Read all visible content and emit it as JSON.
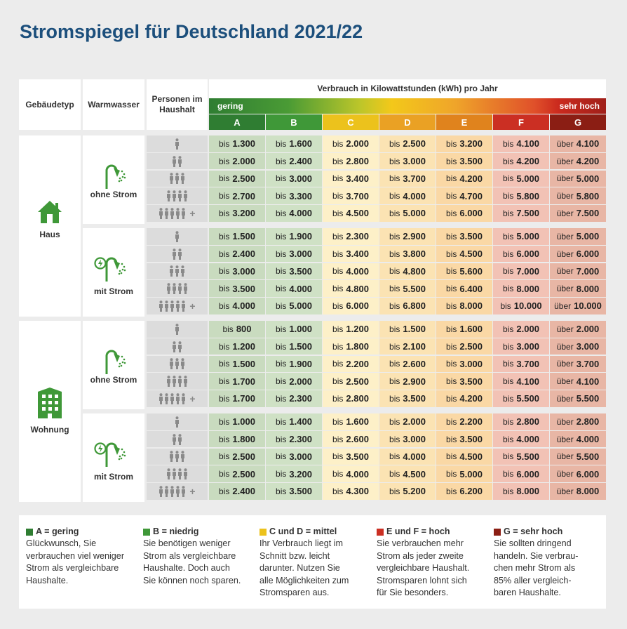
{
  "title": "Stromspiegel für Deutschland 2021/22",
  "header": {
    "gebaeudetyp": "Gebäudetyp",
    "warmwasser": "Warmwasser",
    "personen": "Personen im Haushalt",
    "verbrauch": "Verbrauch in Kilowattstunden (kWh) pro Jahr",
    "gering": "gering",
    "sehr_hoch": "sehr hoch",
    "classes": [
      "A",
      "B",
      "C",
      "D",
      "E",
      "F",
      "G"
    ]
  },
  "colors": {
    "title": "#1c4f7c",
    "green": "#3f9838",
    "class_header": [
      "#2f7d32",
      "#3f9838",
      "#ecc21c",
      "#eaa124",
      "#e0831d",
      "#cb2f23",
      "#8b1e14"
    ],
    "cell": [
      "#c9dbbf",
      "#cfe1c5",
      "#fdf0c8",
      "#fbe3b3",
      "#fad8a5",
      "#f2c2b5",
      "#e8b6a5"
    ]
  },
  "sections": [
    {
      "gebaeude": "Haus",
      "gebaeude_icon": "house-icon",
      "groups": [
        {
          "warmwasser": "ohne Strom",
          "icon": "shower-icon",
          "rows": [
            [
              "1.300",
              "1.600",
              "2.000",
              "2.500",
              "3.200",
              "4.100",
              "4.100"
            ],
            [
              "2.000",
              "2.400",
              "2.800",
              "3.000",
              "3.500",
              "4.200",
              "4.200"
            ],
            [
              "2.500",
              "3.000",
              "3.400",
              "3.700",
              "4.200",
              "5.000",
              "5.000"
            ],
            [
              "2.700",
              "3.300",
              "3.700",
              "4.000",
              "4.700",
              "5.800",
              "5.800"
            ],
            [
              "3.200",
              "4.000",
              "4.500",
              "5.000",
              "6.000",
              "7.500",
              "7.500"
            ]
          ]
        },
        {
          "warmwasser": "mit Strom",
          "icon": "electric-shower-icon",
          "rows": [
            [
              "1.500",
              "1.900",
              "2.300",
              "2.900",
              "3.500",
              "5.000",
              "5.000"
            ],
            [
              "2.400",
              "3.000",
              "3.400",
              "3.800",
              "4.500",
              "6.000",
              "6.000"
            ],
            [
              "3.000",
              "3.500",
              "4.000",
              "4.800",
              "5.600",
              "7.000",
              "7.000"
            ],
            [
              "3.500",
              "4.000",
              "4.800",
              "5.500",
              "6.400",
              "8.000",
              "8.000"
            ],
            [
              "4.000",
              "5.000",
              "6.000",
              "6.800",
              "8.000",
              "10.000",
              "10.000"
            ]
          ]
        }
      ]
    },
    {
      "gebaeude": "Wohnung",
      "gebaeude_icon": "apartment-building-icon",
      "groups": [
        {
          "warmwasser": "ohne Strom",
          "icon": "shower-icon",
          "rows": [
            [
              "800",
              "1.000",
              "1.200",
              "1.500",
              "1.600",
              "2.000",
              "2.000"
            ],
            [
              "1.200",
              "1.500",
              "1.800",
              "2.100",
              "2.500",
              "3.000",
              "3.000"
            ],
            [
              "1.500",
              "1.900",
              "2.200",
              "2.600",
              "3.000",
              "3.700",
              "3.700"
            ],
            [
              "1.700",
              "2.000",
              "2.500",
              "2.900",
              "3.500",
              "4.100",
              "4.100"
            ],
            [
              "1.700",
              "2.300",
              "2.800",
              "3.500",
              "4.200",
              "5.500",
              "5.500"
            ]
          ]
        },
        {
          "warmwasser": "mit Strom",
          "icon": "electric-shower-icon",
          "rows": [
            [
              "1.000",
              "1.400",
              "1.600",
              "2.000",
              "2.200",
              "2.800",
              "2.800"
            ],
            [
              "1.800",
              "2.300",
              "2.600",
              "3.000",
              "3.500",
              "4.000",
              "4.000"
            ],
            [
              "2.500",
              "3.000",
              "3.500",
              "4.000",
              "4.500",
              "5.500",
              "5.500"
            ],
            [
              "2.500",
              "3.200",
              "4.000",
              "4.500",
              "5.000",
              "6.000",
              "6.000"
            ],
            [
              "2.400",
              "3.500",
              "4.300",
              "5.200",
              "6.200",
              "8.000",
              "8.000"
            ]
          ]
        }
      ]
    }
  ],
  "prefix": {
    "bis": "bis",
    "ueber": "über"
  },
  "persons": {
    "plus": "+",
    "counts": [
      1,
      2,
      3,
      4,
      5
    ]
  },
  "legend": [
    {
      "color": "#2f7d32",
      "title": "A = gering",
      "lines": [
        "Glückwunsch, Sie",
        "verbrauchen viel weniger",
        "Strom als vergleichbare",
        "Haushalte."
      ]
    },
    {
      "color": "#3f9838",
      "title": "B = niedrig",
      "lines": [
        "Sie benötigen weniger",
        "Strom als vergleichbare",
        "Haushalte. Doch auch",
        "Sie können noch sparen."
      ]
    },
    {
      "color": "#ecc21c",
      "title": "C und D = mittel",
      "lines": [
        "Ihr Verbrauch liegt im",
        "Schnitt bzw. leicht",
        "darunter. Nutzen Sie",
        "alle Möglichkeiten zum",
        "Stromsparen aus."
      ]
    },
    {
      "color": "#cb2f23",
      "title": "E und F = hoch",
      "lines": [
        "Sie verbrauchen mehr",
        "Strom als jeder zweite",
        "vergleichbare Haushalt.",
        "Stromsparen lohnt sich",
        "für Sie besonders."
      ]
    },
    {
      "color": "#8b1e14",
      "title": "G = sehr hoch",
      "lines": [
        "Sie sollten dringend",
        "handeln. Sie verbrau-",
        "chen mehr Strom als",
        "85% aller vergleich-",
        "baren Haushalte."
      ]
    }
  ]
}
